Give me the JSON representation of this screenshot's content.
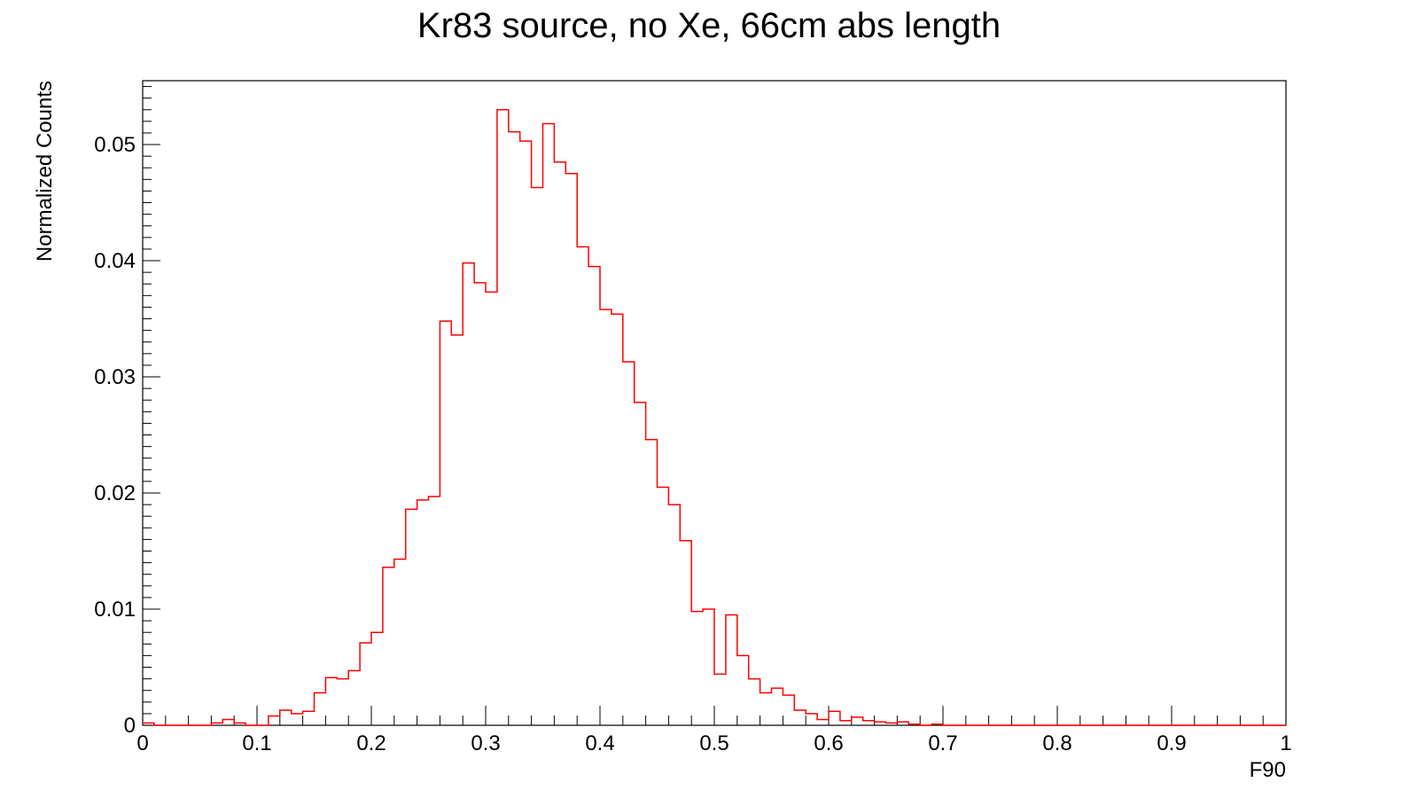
{
  "chart_data": {
    "type": "histogram",
    "title": "Kr83 source, no Xe, 66cm abs length",
    "xlabel": "F90",
    "ylabel": "Normalized Counts",
    "xlim": [
      0,
      1
    ],
    "ylim": [
      0,
      0.0555
    ],
    "x_ticks": [
      0,
      0.1,
      0.2,
      0.3,
      0.4,
      0.5,
      0.6,
      0.7,
      0.8,
      0.9,
      1
    ],
    "x_tick_labels": [
      "0",
      "0.1",
      "0.2",
      "0.3",
      "0.4",
      "0.5",
      "0.6",
      "0.7",
      "0.8",
      "0.9",
      "1"
    ],
    "y_ticks": [
      0,
      0.01,
      0.02,
      0.03,
      0.04,
      0.05
    ],
    "y_tick_labels": [
      "0",
      "0.01",
      "0.02",
      "0.03",
      "0.04",
      "0.05"
    ],
    "bin_width": 0.01,
    "series": [
      {
        "name": "F90",
        "color": "#ff0000",
        "values": [
          0.0002,
          0.0,
          0.0,
          0.0,
          0.0,
          0.0,
          0.0002,
          0.0005,
          0.0002,
          0.0,
          0.0,
          0.0008,
          0.0013,
          0.001,
          0.0012,
          0.0028,
          0.0041,
          0.004,
          0.0047,
          0.0071,
          0.008,
          0.0136,
          0.0143,
          0.0186,
          0.0194,
          0.0197,
          0.0348,
          0.0336,
          0.0398,
          0.0381,
          0.0373,
          0.053,
          0.0511,
          0.0503,
          0.0463,
          0.0518,
          0.0485,
          0.0475,
          0.0412,
          0.0395,
          0.0358,
          0.0354,
          0.0313,
          0.0278,
          0.0246,
          0.0205,
          0.019,
          0.0159,
          0.0098,
          0.01,
          0.0044,
          0.0095,
          0.006,
          0.004,
          0.0028,
          0.0032,
          0.0026,
          0.0013,
          0.001,
          0.0005,
          0.0012,
          0.0004,
          0.0007,
          0.0004,
          0.0003,
          0.0002,
          0.0003,
          0.0001,
          0.0,
          0.0001,
          0.0,
          0.0,
          0.0,
          0.0,
          0.0,
          0.0,
          0.0,
          0.0,
          0.0,
          0.0,
          0.0,
          0.0,
          0.0,
          0.0,
          0.0,
          0.0,
          0.0,
          0.0,
          0.0,
          0.0,
          0.0,
          0.0,
          0.0,
          0.0,
          0.0,
          0.0,
          0.0,
          0.0,
          0.0,
          0.0
        ]
      }
    ]
  }
}
